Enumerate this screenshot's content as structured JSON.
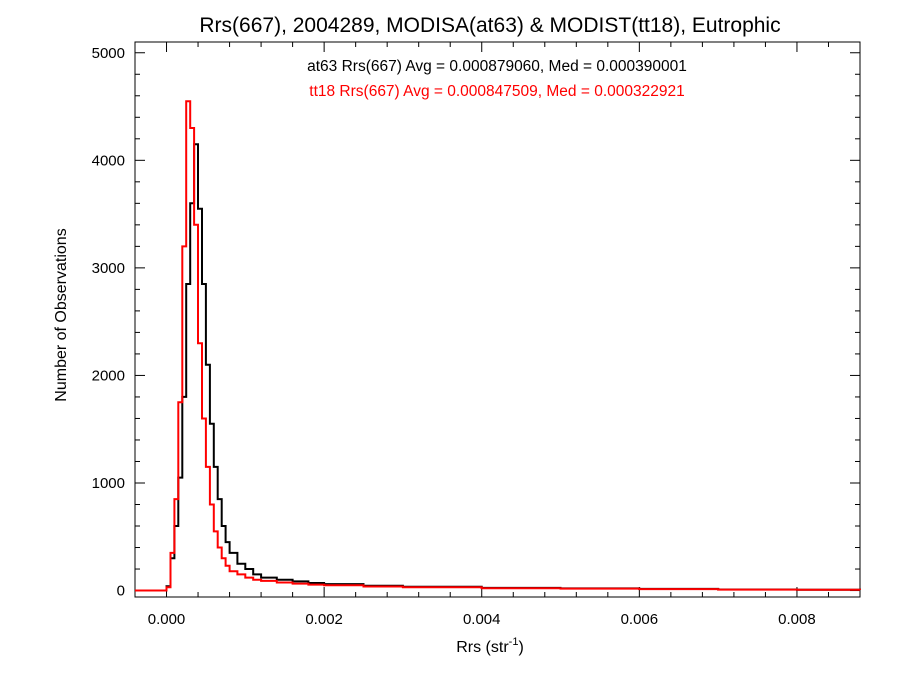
{
  "chart_data": {
    "type": "line",
    "title": "Rrs(667), 2004289, MODISA(at63) & MODIST(tt18), Eutrophic",
    "xlabel": "Rrs (str",
    "xlabel_sup": "-1",
    "xlabel_close": ")",
    "ylabel": "Number of Observations",
    "xlim": [
      -0.0004,
      0.0088
    ],
    "ylim": [
      -60,
      5100
    ],
    "xticks": [
      0.0,
      0.002,
      0.004,
      0.006,
      0.008
    ],
    "xtick_labels": [
      "0.000",
      "0.002",
      "0.004",
      "0.006",
      "0.008"
    ],
    "yticks": [
      0,
      1000,
      2000,
      3000,
      4000,
      5000
    ],
    "ytick_labels": [
      "0",
      "1000",
      "2000",
      "3000",
      "4000",
      "5000"
    ],
    "grid": false,
    "legend": "top-center",
    "step": true,
    "series": [
      {
        "name": "at63 Rrs(667) Avg = 0.000879060, Med = 0.000390001",
        "color": "#000000",
        "x": [
          -0.0004,
          0.0,
          5e-05,
          0.0001,
          0.00015,
          0.0002,
          0.00025,
          0.0003,
          0.00035,
          0.0004,
          0.00045,
          0.0005,
          0.00055,
          0.0006,
          0.00065,
          0.0007,
          0.00075,
          0.0008,
          0.0009,
          0.001,
          0.0011,
          0.0012,
          0.0014,
          0.0016,
          0.0018,
          0.002,
          0.0025,
          0.003,
          0.004,
          0.005,
          0.006,
          0.007,
          0.008,
          0.0088
        ],
        "y": [
          0,
          40,
          300,
          600,
          1050,
          1800,
          2850,
          3600,
          4150,
          3550,
          2850,
          2100,
          1550,
          1150,
          850,
          600,
          450,
          350,
          250,
          200,
          150,
          120,
          100,
          85,
          70,
          60,
          45,
          35,
          25,
          20,
          15,
          10,
          8,
          5
        ]
      },
      {
        "name": "tt18 Rrs(667) Avg = 0.000847509, Med = 0.000322921",
        "color": "#ff0000",
        "x": [
          -0.0004,
          0.0,
          5e-05,
          0.0001,
          0.00015,
          0.0002,
          0.00025,
          0.0003,
          0.00035,
          0.0004,
          0.00045,
          0.0005,
          0.00055,
          0.0006,
          0.00065,
          0.0007,
          0.00075,
          0.0008,
          0.0009,
          0.001,
          0.0011,
          0.0012,
          0.0014,
          0.0016,
          0.0018,
          0.002,
          0.0025,
          0.003,
          0.004,
          0.005,
          0.006,
          0.007,
          0.008,
          0.0088
        ],
        "y": [
          0,
          30,
          350,
          850,
          1750,
          3200,
          4550,
          4300,
          3400,
          2300,
          1600,
          1150,
          800,
          550,
          400,
          300,
          230,
          180,
          150,
          120,
          100,
          90,
          75,
          65,
          55,
          50,
          38,
          30,
          22,
          18,
          13,
          9,
          7,
          5
        ]
      }
    ]
  }
}
